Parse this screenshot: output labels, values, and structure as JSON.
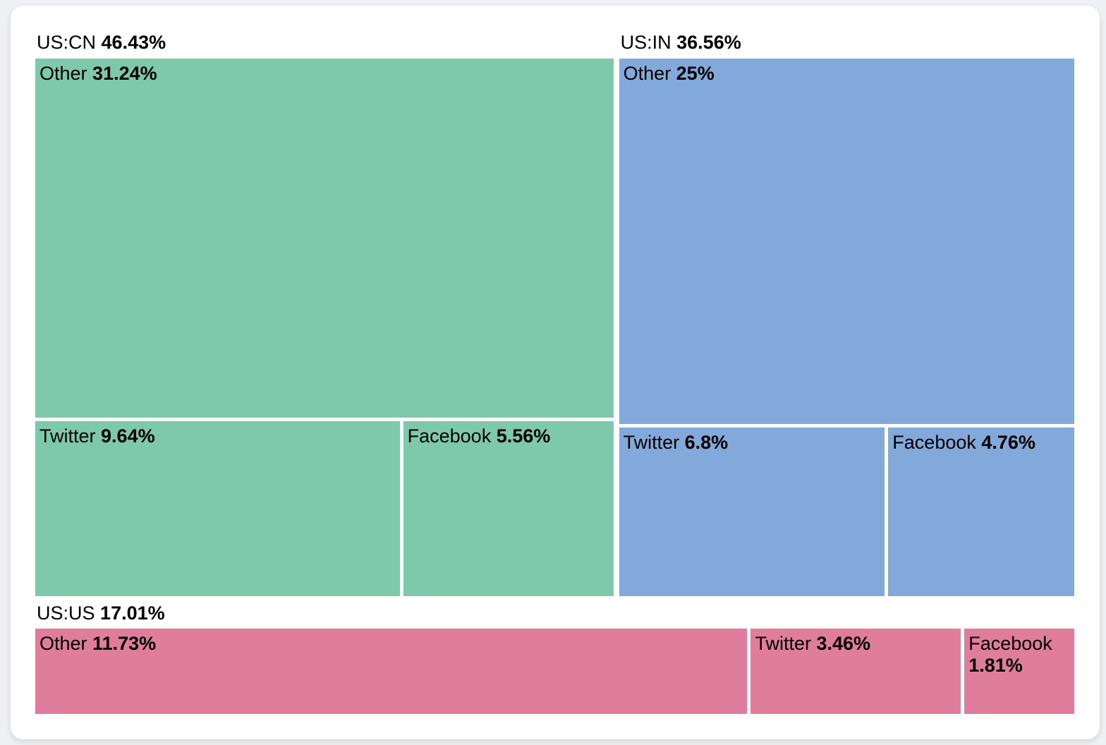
{
  "page": {
    "background_color": "#eff0f3",
    "card_color": "#ffffff",
    "text_color": "#000000"
  },
  "chart_data": {
    "type": "treemap",
    "unit": "%",
    "legend": "none",
    "groups": [
      {
        "name": "US:CN",
        "value": 46.43,
        "value_label": "46.43%",
        "color": "#7ec9ab",
        "arrangement": "stack",
        "children": [
          {
            "name": "Other",
            "value": 31.24,
            "value_label": "31.24%"
          },
          {
            "name": "Twitter",
            "value": 9.64,
            "value_label": "9.64%"
          },
          {
            "name": "Facebook",
            "value": 5.56,
            "value_label": "5.56%"
          }
        ]
      },
      {
        "name": "US:IN",
        "value": 36.56,
        "value_label": "36.56%",
        "color": "#82a9d9",
        "arrangement": "stack",
        "children": [
          {
            "name": "Other",
            "value": 25.0,
            "value_label": "25%"
          },
          {
            "name": "Twitter",
            "value": 6.8,
            "value_label": "6.8%"
          },
          {
            "name": "Facebook",
            "value": 4.76,
            "value_label": "4.76%"
          }
        ]
      },
      {
        "name": "US:US",
        "value": 17.01,
        "value_label": "17.01%",
        "color": "#e07d9d",
        "arrangement": "row",
        "children": [
          {
            "name": "Other",
            "value": 11.73,
            "value_label": "11.73%"
          },
          {
            "name": "Twitter",
            "value": 3.46,
            "value_label": "3.46%"
          },
          {
            "name": "Facebook",
            "value": 1.81,
            "value_label": "1.81%"
          }
        ]
      }
    ]
  }
}
